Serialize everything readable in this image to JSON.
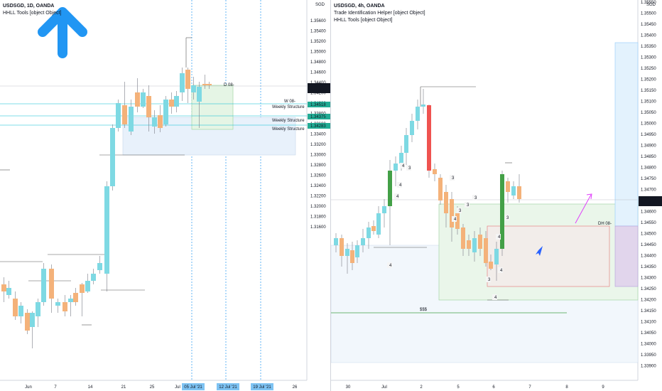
{
  "left": {
    "legend": {
      "symbol": "USDSGD, 1D, OANDA",
      "indicator": "HHLL Tools [object Object]"
    },
    "currency": "SGD",
    "price_axis": [
      "1.35600",
      "1.35400",
      "1.35200",
      "1.35000",
      "1.34800",
      "1.34600",
      "1.34400",
      "1.34200",
      "1.34000",
      "1.33800",
      "1.33600",
      "1.33400",
      "1.33200",
      "1.33000",
      "1.32800",
      "1.32600",
      "1.32400",
      "1.32200",
      "1.32000",
      "1.31800",
      "1.31600"
    ],
    "current_price": "1.34712",
    "countdown": "17:59:47",
    "structure_prices": [
      "1.34518",
      "1.34375",
      "1.34283"
    ],
    "labels": {
      "weekly": "Weekly Structure",
      "w08": "W 08-",
      "d08": "D 08-"
    },
    "time_axis": [
      "Jun",
      "7",
      "14",
      "21",
      "25",
      "Jul",
      "26"
    ],
    "highlight_dates": [
      "05 Jul '21",
      "12 Jul '21",
      "19 Jul '21"
    ]
  },
  "right": {
    "legend": {
      "symbol": "USDSGD, 4h, OANDA",
      "indicator1": "Trade Identification Helper [object Object]",
      "indicator2": "HHLL Tools [object Object]"
    },
    "currency": "SGD",
    "price_axis": [
      "1.35550",
      "1.35500",
      "1.35450",
      "1.35400",
      "1.35350",
      "1.35300",
      "1.35250",
      "1.35200",
      "1.35150",
      "1.35100",
      "1.35050",
      "1.35000",
      "1.34950",
      "1.34900",
      "1.34850",
      "1.34800",
      "1.34750",
      "1.34700",
      "1.34650",
      "1.34600",
      "1.34550",
      "1.34500",
      "1.34450",
      "1.34400",
      "1.34350",
      "1.34300",
      "1.34250",
      "1.34200",
      "1.34150",
      "1.34100",
      "1.34050",
      "1.34000",
      "1.33950",
      "1.33900"
    ],
    "current_price": "1.34712",
    "countdown": "01:59:47",
    "labels": {
      "dh08": "DH 08-",
      "ssss": "$$$"
    },
    "numbers": [
      "4",
      "3",
      "4",
      "4",
      "4",
      "3",
      "3",
      "4",
      "3",
      "3",
      "4",
      "4",
      "3",
      "4",
      "3"
    ],
    "time_axis": [
      "30",
      "Jul",
      "2",
      "5",
      "6",
      "7",
      "8",
      "9"
    ]
  },
  "colors": {
    "up": "#7ed9e3",
    "down": "#f4b27a",
    "strong_up": "#43a047",
    "strong_down": "#ef5350",
    "accent": "#2196f3",
    "label_bg": "#22ab94"
  }
}
